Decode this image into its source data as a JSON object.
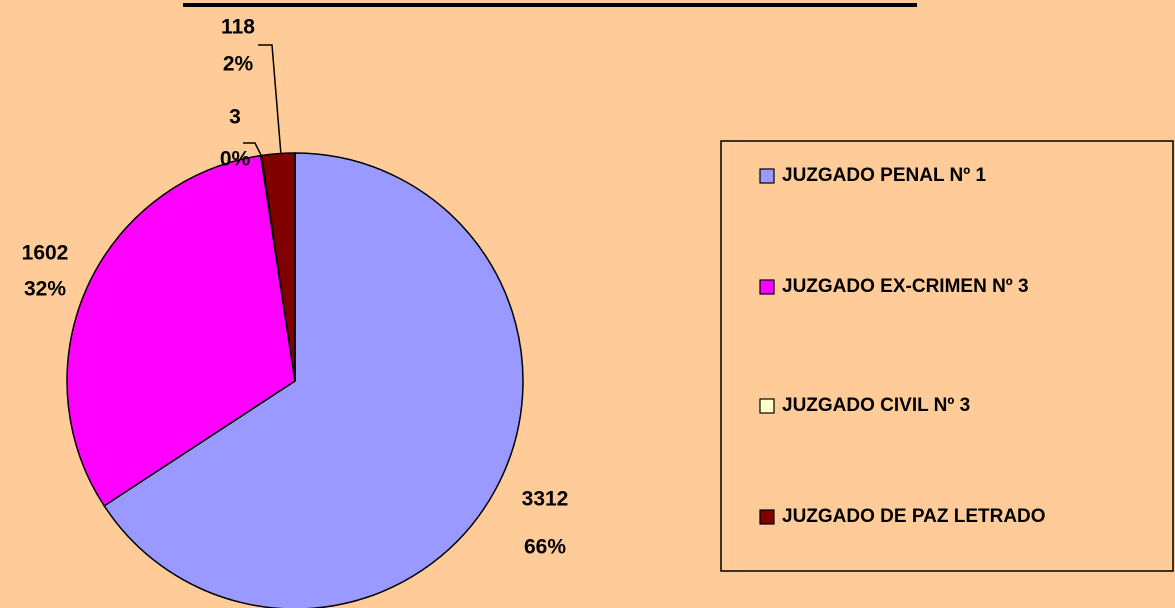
{
  "chart_data": {
    "type": "pie",
    "categories": [
      "JUZGADO PENAL Nº 1",
      "JUZGADO EX-CRIMEN Nº 3",
      "JUZGADO CIVIL Nº 3",
      "JUZGADO DE PAZ LETRADO"
    ],
    "values": [
      3312,
      1602,
      3,
      118
    ],
    "value_labels": [
      "3312",
      "1602",
      "3",
      "118"
    ],
    "percent_labels": [
      "66%",
      "32%",
      "0%",
      "2%"
    ],
    "colors": [
      "#9999ff",
      "#ff00ff",
      "#ffffcc",
      "#800000"
    ],
    "legend": "right"
  }
}
